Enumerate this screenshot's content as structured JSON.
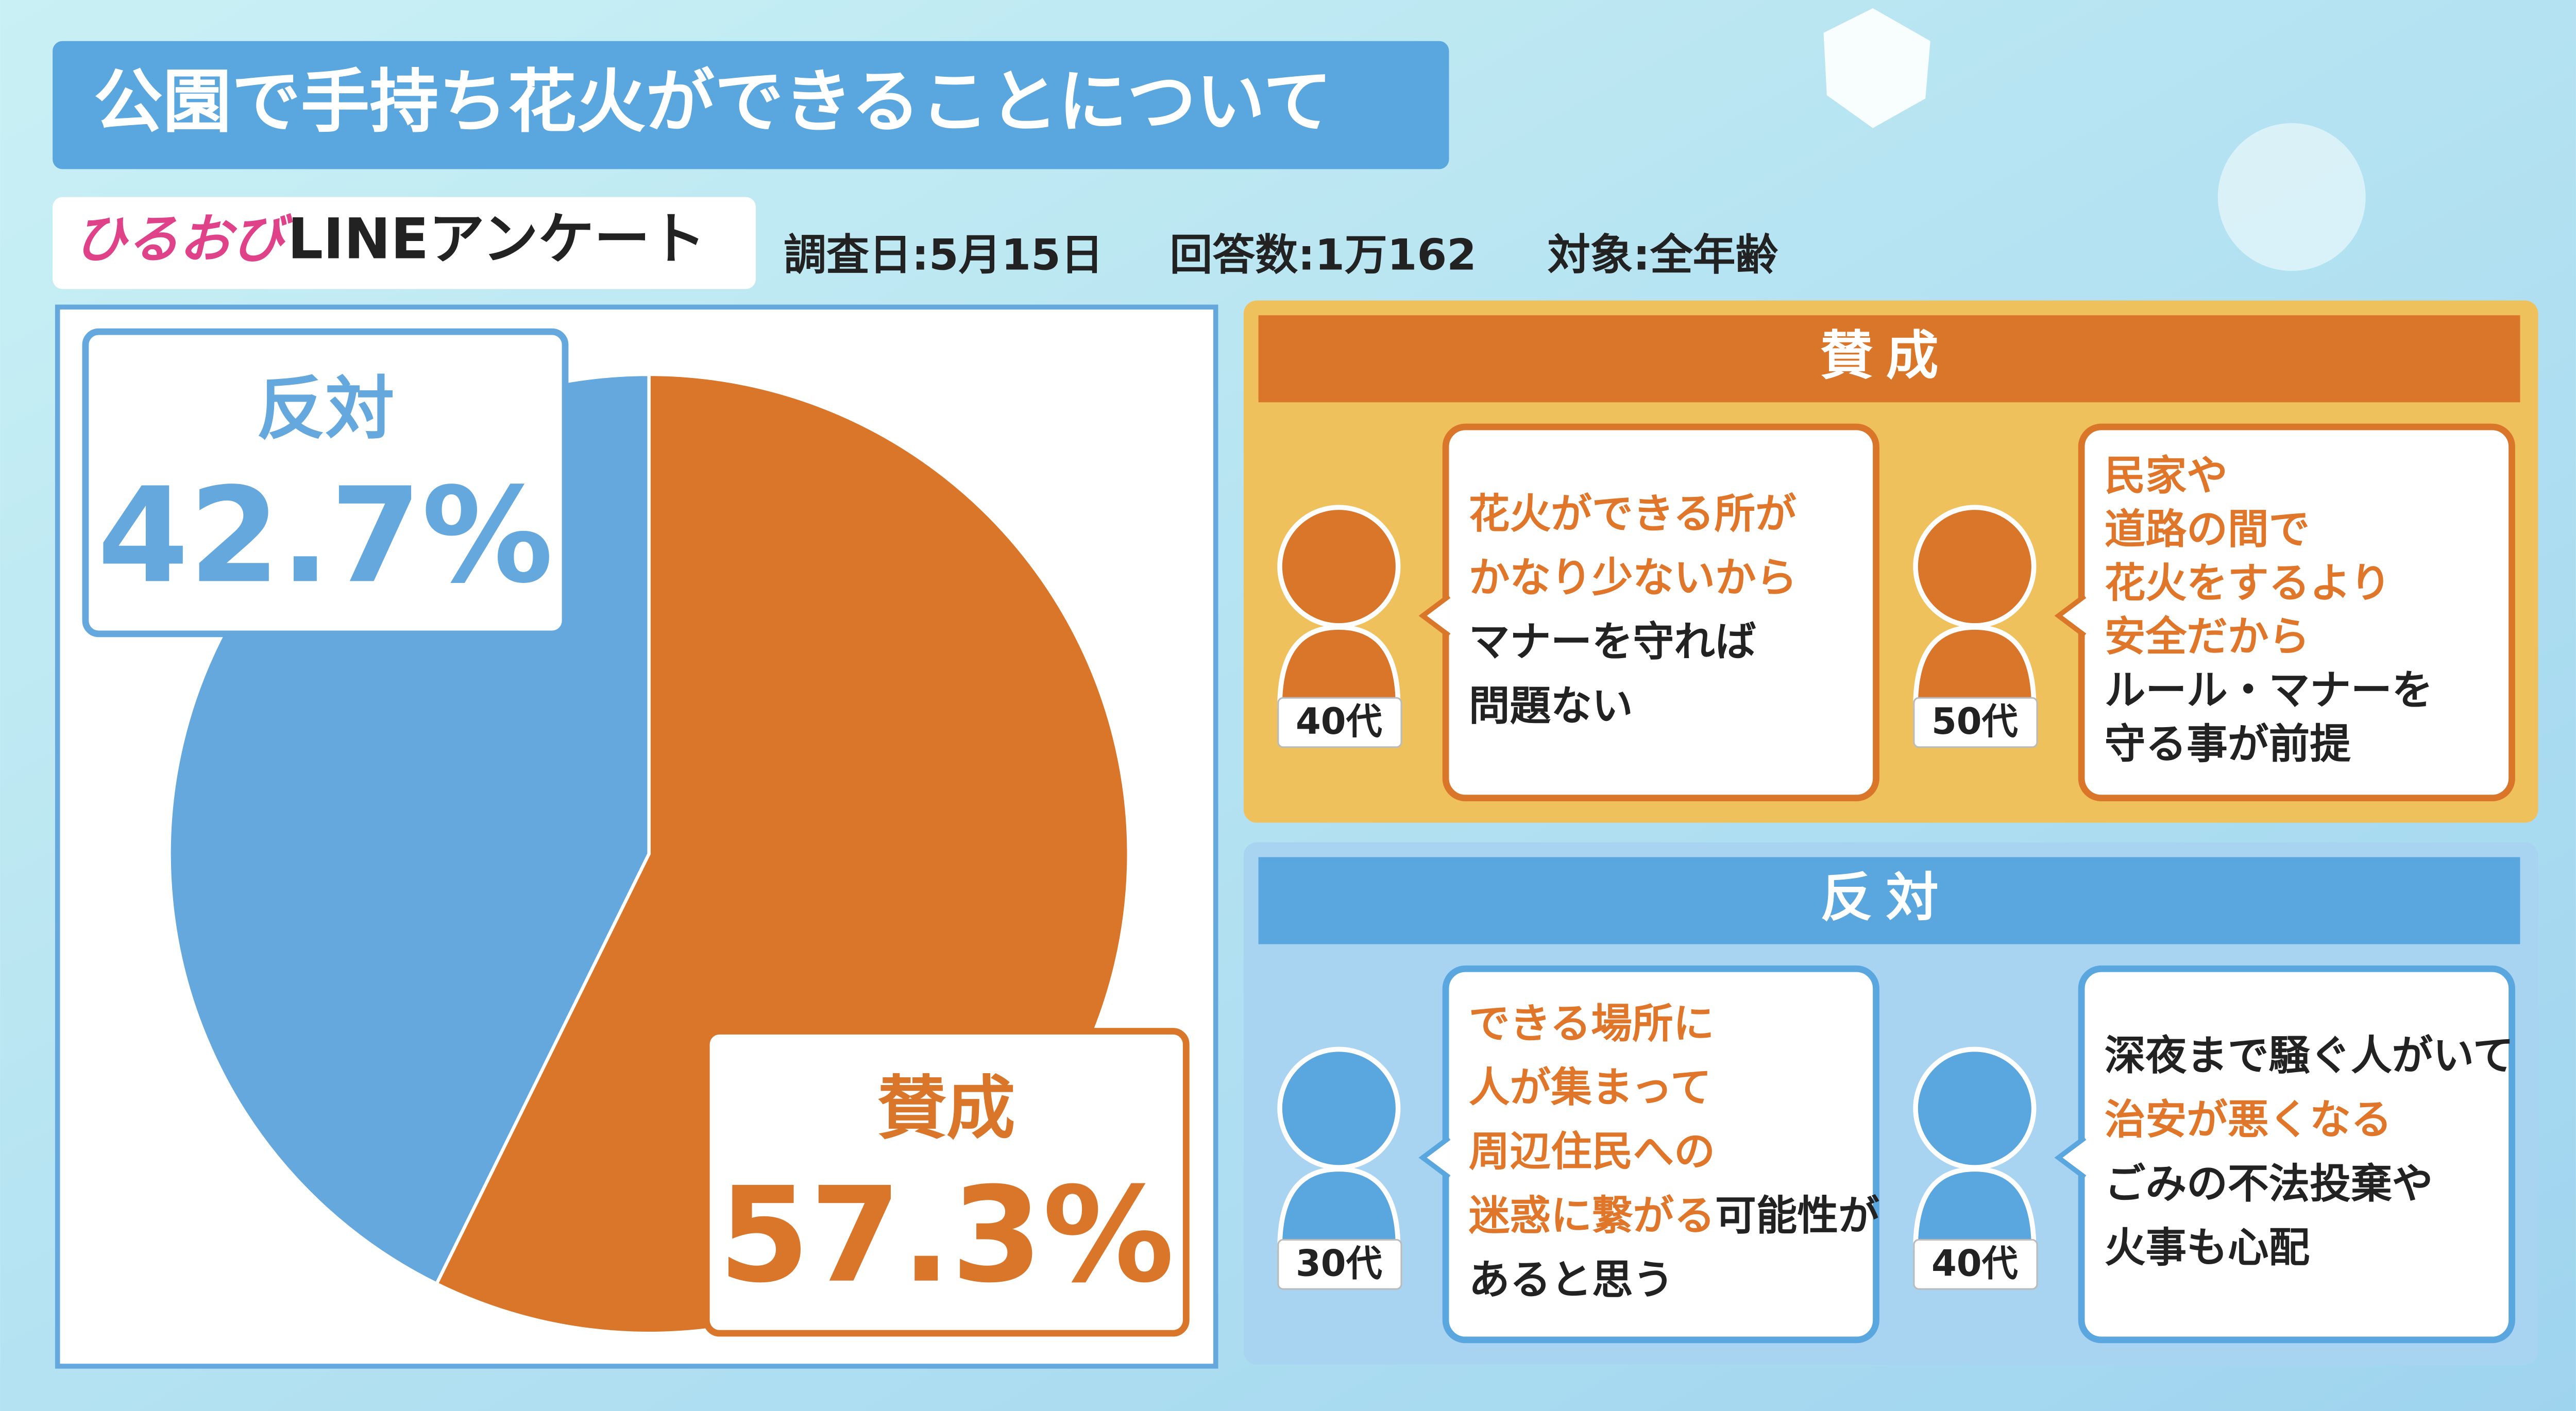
{
  "title": "公園で手持ち花火ができることについて",
  "source": {
    "logo": "ひるおび",
    "name": "LINEアンケート",
    "details": [
      "調査日:5月15日",
      "回答数:1万162",
      "対象:全年齢"
    ]
  },
  "chart_data": {
    "type": "pie",
    "categories": [
      "賛成",
      "反対"
    ],
    "values": [
      57.3,
      42.7
    ],
    "value_labels": [
      "57.3%",
      "42.7%"
    ],
    "colors": [
      "#d9762a",
      "#64a8de"
    ]
  },
  "opinions": [
    {
      "heading": "賛成",
      "color": "#d9762a",
      "panel_color": "#efc15c",
      "comments": [
        {
          "age": "40代",
          "lines": [
            [
              {
                "text": "花火ができる所が",
                "highlight": true
              }
            ],
            [
              {
                "text": "かなり少ないから",
                "highlight": true
              }
            ],
            [
              {
                "text": "マナーを守れば"
              }
            ],
            [
              {
                "text": "問題ない"
              }
            ]
          ]
        },
        {
          "age": "50代",
          "lines": [
            [
              {
                "text": "民家や",
                "highlight": true
              }
            ],
            [
              {
                "text": "道路の間で",
                "highlight": true
              }
            ],
            [
              {
                "text": "花火をするより",
                "highlight": true
              }
            ],
            [
              {
                "text": "安全だから",
                "highlight": true
              }
            ],
            [
              {
                "text": "ルール・マナーを"
              }
            ],
            [
              {
                "text": "守る事が前提"
              }
            ]
          ]
        }
      ]
    },
    {
      "heading": "反対",
      "color": "#5aa6df",
      "panel_color": "#a8d3f1",
      "comments": [
        {
          "age": "30代",
          "lines": [
            [
              {
                "text": "できる場所に",
                "highlight": true
              }
            ],
            [
              {
                "text": "人が集まって",
                "highlight": true
              }
            ],
            [
              {
                "text": "周辺住民への",
                "highlight": true
              }
            ],
            [
              {
                "text": "迷惑に繋がる",
                "highlight": true
              },
              {
                "text": "可能性が"
              }
            ],
            [
              {
                "text": "あると思う"
              }
            ]
          ]
        },
        {
          "age": "40代",
          "lines": [
            [
              {
                "text": "深夜まで騒ぐ人がいて"
              }
            ],
            [
              {
                "text": "治安が悪くなる",
                "highlight": true
              }
            ],
            [
              {
                "text": "ごみの不法投棄や"
              }
            ],
            [
              {
                "text": "火事も心配"
              }
            ]
          ]
        }
      ]
    }
  ]
}
